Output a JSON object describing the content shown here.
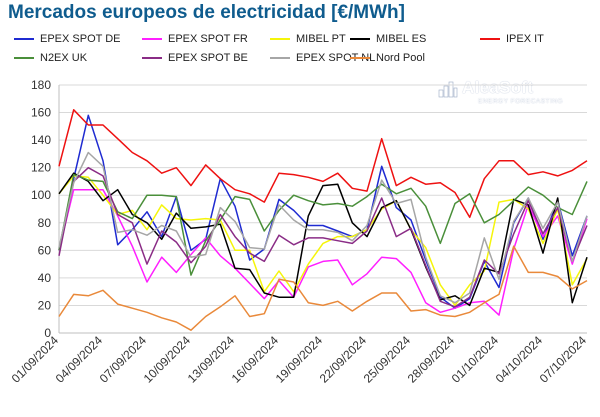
{
  "chart_data": {
    "type": "line",
    "title": "Mercados europeos de electricidad [€/MWh]",
    "xlabel": "",
    "ylabel": "",
    "ylim": [
      0,
      180
    ],
    "yticks": [
      0,
      20,
      40,
      60,
      80,
      100,
      120,
      140,
      160,
      180
    ],
    "grid": true,
    "legend_position": "top",
    "x": [
      "01/09/2024",
      "02/09/2024",
      "03/09/2024",
      "04/09/2024",
      "05/09/2024",
      "06/09/2024",
      "07/09/2024",
      "08/09/2024",
      "09/09/2024",
      "10/09/2024",
      "11/09/2024",
      "12/09/2024",
      "13/09/2024",
      "14/09/2024",
      "15/09/2024",
      "16/09/2024",
      "17/09/2024",
      "18/09/2024",
      "19/09/2024",
      "20/09/2024",
      "21/09/2024",
      "22/09/2024",
      "23/09/2024",
      "24/09/2024",
      "25/09/2024",
      "26/09/2024",
      "27/09/2024",
      "28/09/2024",
      "29/09/2024",
      "30/09/2024",
      "01/10/2024",
      "02/10/2024",
      "03/10/2024",
      "04/10/2024",
      "05/10/2024",
      "06/10/2024",
      "07/10/2024"
    ],
    "xtick_labels": [
      "01/09/2024",
      "04/09/2024",
      "07/09/2024",
      "10/09/2024",
      "13/09/2024",
      "16/09/2024",
      "19/09/2024",
      "22/09/2024",
      "25/09/2024",
      "28/09/2024",
      "01/10/2024",
      "04/10/2024",
      "07/10/2024"
    ],
    "series": [
      {
        "name": "EPEX SPOT DE",
        "color": "#1f2bd1",
        "values": [
          60,
          112,
          158,
          125,
          64,
          75,
          88,
          70,
          99,
          60,
          68,
          112,
          92,
          53,
          61,
          97,
          89,
          78,
          78,
          74,
          70,
          75,
          121,
          91,
          82,
          53,
          26,
          18,
          25,
          52,
          33,
          80,
          98,
          68,
          96,
          56,
          85
        ]
      },
      {
        "name": "EPEX SPOT FR",
        "color": "#ff1fff",
        "values": [
          60,
          104,
          104,
          104,
          85,
          63,
          37,
          55,
          44,
          57,
          69,
          56,
          47,
          36,
          25,
          38,
          26,
          48,
          52,
          53,
          35,
          43,
          55,
          54,
          44,
          22,
          15,
          18,
          22,
          23,
          13,
          61,
          93,
          70,
          85,
          50,
          83
        ]
      },
      {
        "name": "MIBEL PT",
        "color": "#f5f50a",
        "values": [
          101,
          114,
          113,
          100,
          86,
          89,
          75,
          93,
          83,
          82,
          83,
          82,
          60,
          60,
          30,
          45,
          30,
          50,
          65,
          70,
          70,
          75,
          90,
          96,
          75,
          62,
          35,
          20,
          35,
          45,
          95,
          97,
          90,
          65,
          90,
          35,
          54
        ]
      },
      {
        "name": "MIBEL ES",
        "color": "#000000",
        "values": [
          101,
          116,
          110,
          96,
          104,
          86,
          80,
          68,
          87,
          76,
          77,
          79,
          47,
          46,
          29,
          26,
          26,
          85,
          107,
          108,
          80,
          70,
          91,
          96,
          75,
          48,
          24,
          27,
          20,
          47,
          44,
          97,
          93,
          58,
          98,
          22,
          55
        ]
      },
      {
        "name": "IPEX IT",
        "color": "#ee1111",
        "values": [
          121,
          162,
          151,
          151,
          141,
          131,
          125,
          116,
          120,
          107,
          122,
          112,
          104,
          101,
          95,
          116,
          115,
          113,
          110,
          116,
          105,
          103,
          141,
          107,
          113,
          108,
          109,
          102,
          84,
          112,
          125,
          125,
          115,
          117,
          114,
          118,
          125
        ]
      },
      {
        "name": "N2EX UK",
        "color": "#4a8f3a",
        "values": [
          60,
          115,
          111,
          110,
          88,
          83,
          100,
          100,
          99,
          42,
          67,
          82,
          99,
          97,
          74,
          89,
          100,
          96,
          93,
          94,
          92,
          99,
          108,
          101,
          105,
          92,
          65,
          94,
          101,
          80,
          86,
          96,
          106,
          100,
          91,
          86,
          110
        ]
      },
      {
        "name": "EPEX SPOT BE",
        "color": "#8a2c86",
        "values": [
          56,
          110,
          120,
          114,
          86,
          80,
          50,
          74,
          66,
          51,
          63,
          86,
          70,
          58,
          52,
          71,
          64,
          69,
          69,
          67,
          65,
          74,
          98,
          70,
          76,
          49,
          23,
          19,
          26,
          53,
          43,
          72,
          96,
          72,
          91,
          52,
          78
        ]
      },
      {
        "name": "EPEX SPOT NL",
        "color": "#a6a6a6",
        "values": [
          62,
          109,
          131,
          121,
          73,
          75,
          71,
          78,
          74,
          55,
          57,
          91,
          81,
          62,
          61,
          93,
          82,
          75,
          75,
          73,
          67,
          78,
          111,
          94,
          97,
          55,
          27,
          22,
          29,
          69,
          39,
          81,
          98,
          76,
          95,
          52,
          85
        ]
      },
      {
        "name": "Nord Pool",
        "color": "#e9893a",
        "values": [
          12,
          28,
          27,
          31,
          21,
          18,
          15,
          11,
          8,
          2,
          12,
          19,
          27,
          12,
          14,
          39,
          37,
          22,
          20,
          23,
          16,
          23,
          29,
          29,
          16,
          17,
          13,
          12,
          15,
          22,
          28,
          63,
          44,
          44,
          41,
          32,
          38
        ]
      }
    ]
  },
  "branding": {
    "name": "AleaSoft",
    "tagline": "ENERGY FORECASTING"
  }
}
